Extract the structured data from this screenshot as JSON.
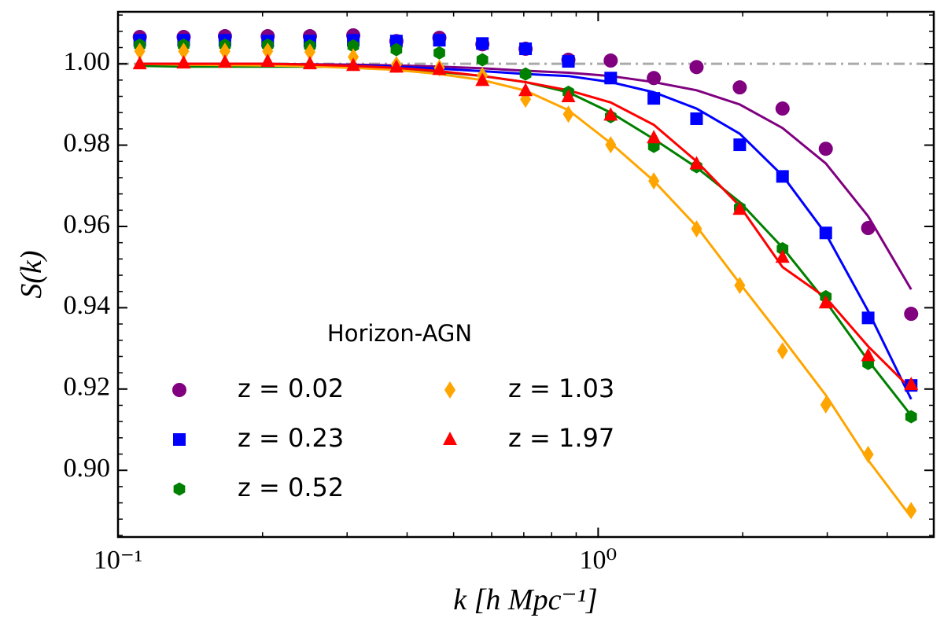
{
  "chart_data": {
    "type": "scatter",
    "x_label": "k [h Mpc⁻¹]",
    "y_label": "S(k)",
    "legend_title": "Horizon-AGN",
    "xscale": "log",
    "xlim": [
      0.1,
      5.0
    ],
    "ylim": [
      0.8836,
      1.0128
    ],
    "xticks": [
      {
        "value": 0.1,
        "label": "10⁻¹"
      },
      {
        "value": 1,
        "label": "10⁰"
      }
    ],
    "xminor_ticks": [
      0.2,
      0.3,
      0.4,
      0.5,
      0.6,
      0.7,
      0.8,
      0.9,
      2,
      3,
      4
    ],
    "yticks": [
      {
        "value": 0.9,
        "label": "0.90"
      },
      {
        "value": 0.92,
        "label": "0.92"
      },
      {
        "value": 0.94,
        "label": "0.94"
      },
      {
        "value": 0.96,
        "label": "0.96"
      },
      {
        "value": 0.98,
        "label": "0.98"
      },
      {
        "value": 1.0,
        "label": "1.00"
      }
    ],
    "yminor_ticks": [
      0.884,
      0.888,
      0.892,
      0.896,
      0.904,
      0.908,
      0.912,
      0.916,
      0.924,
      0.928,
      0.932,
      0.936,
      0.944,
      0.948,
      0.952,
      0.956,
      0.964,
      0.968,
      0.972,
      0.976,
      0.984,
      0.988,
      0.992,
      0.996,
      1.004,
      1.008,
      1.012
    ],
    "hline": {
      "value": 1.0,
      "color": "#aaaaaa"
    },
    "x": [
      0.111,
      0.137,
      0.167,
      0.205,
      0.251,
      0.309,
      0.38,
      0.467,
      0.574,
      0.706,
      0.867,
      1.062,
      1.306,
      1.603,
      1.972,
      2.421,
      2.979,
      3.65,
      4.486
    ],
    "series": [
      {
        "name": "z = 0.02",
        "color": "#800080",
        "marker": "circle",
        "values": [
          1.0066,
          1.0066,
          1.0068,
          1.0068,
          1.0068,
          1.007,
          1.0056,
          1.0064,
          1.0048,
          1.0037,
          1.001,
          1.0008,
          0.9965,
          0.9992,
          0.9942,
          0.989,
          0.9791,
          0.9596,
          0.9385
        ],
        "model": [
          1.0,
          1.0,
          1.0,
          1.0,
          0.9999,
          0.9998,
          0.9996,
          0.9993,
          0.9989,
          0.9983,
          0.9978,
          0.997,
          0.9955,
          0.9935,
          0.99,
          0.9842,
          0.9755,
          0.9625,
          0.9445
        ]
      },
      {
        "name": "z = 0.23",
        "color": "#0000ff",
        "marker": "square",
        "values": [
          1.0058,
          1.0058,
          1.0058,
          1.0056,
          1.0056,
          1.0058,
          1.0056,
          1.0058,
          1.005,
          1.0037,
          1.0006,
          0.9965,
          0.9915,
          0.9865,
          0.9801,
          0.9723,
          0.9584,
          0.9375,
          0.9209
        ],
        "model": [
          1.0,
          0.9999,
          0.9999,
          0.9999,
          0.9998,
          0.9996,
          0.9993,
          0.9988,
          0.9982,
          0.9975,
          0.997,
          0.9955,
          0.993,
          0.989,
          0.9828,
          0.9725,
          0.9582,
          0.9392,
          0.9175
        ]
      },
      {
        "name": "z = 0.52",
        "color": "#008000",
        "marker": "hexagon",
        "values": [
          1.0046,
          1.0046,
          1.0046,
          1.0046,
          1.0044,
          1.0044,
          1.0035,
          1.0027,
          1.001,
          0.9975,
          0.993,
          0.987,
          0.9797,
          0.9747,
          0.9646,
          0.9545,
          0.9427,
          0.9263,
          0.9132
        ],
        "model": [
          0.9995,
          0.9993,
          0.9993,
          0.9993,
          0.9993,
          0.9992,
          0.9988,
          0.998,
          0.997,
          0.9955,
          0.993,
          0.988,
          0.9815,
          0.9745,
          0.966,
          0.9548,
          0.9415,
          0.927,
          0.9135
        ]
      },
      {
        "name": "z = 1.03",
        "color": "#ffa500",
        "marker": "diamond",
        "values": [
          1.0031,
          1.0031,
          1.0031,
          1.0031,
          1.0029,
          1.0017,
          0.9998,
          0.999,
          0.9971,
          0.9913,
          0.9876,
          0.9801,
          0.9712,
          0.9594,
          0.9455,
          0.9294,
          0.9161,
          0.9039,
          0.8901
        ],
        "model": [
          1.0,
          0.9998,
          0.9997,
          0.9996,
          0.9994,
          0.999,
          0.9985,
          0.9975,
          0.996,
          0.9934,
          0.9886,
          0.9805,
          0.9712,
          0.96,
          0.946,
          0.9325,
          0.9185,
          0.9025,
          0.8885
        ]
      },
      {
        "name": "z = 1.97",
        "color": "#ff0000",
        "marker": "triangle",
        "values": [
          1.0,
          1.0002,
          1.0004,
          1.0006,
          1.0,
          0.9996,
          0.9992,
          0.9986,
          0.9959,
          0.9934,
          0.9919,
          0.9874,
          0.9818,
          0.9754,
          0.9642,
          0.9524,
          0.9412,
          0.9282,
          0.9211
        ],
        "model": [
          1.0,
          1.0,
          1.0,
          1.0,
          0.9998,
          0.9995,
          0.999,
          0.9982,
          0.997,
          0.9955,
          0.9935,
          0.9905,
          0.985,
          0.976,
          0.965,
          0.95,
          0.9425,
          0.9305,
          0.92
        ]
      }
    ]
  }
}
